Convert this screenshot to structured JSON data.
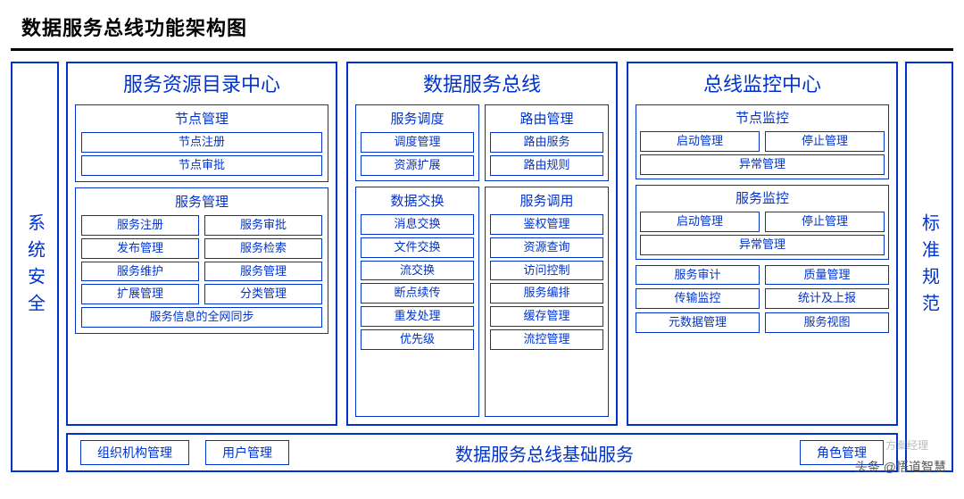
{
  "title": "数据服务总线功能架构图",
  "colors": {
    "border": "#0033cc",
    "text": "#0033cc",
    "title": "#000000",
    "bg": "#ffffff"
  },
  "left_panel": "系统安全",
  "right_panel": "标准规范",
  "columns": [
    {
      "title": "服务资源目录中心",
      "groups": [
        {
          "title": "节点管理",
          "layout": "full",
          "items": [
            "节点注册",
            "节点审批"
          ]
        },
        {
          "title": "服务管理",
          "layout": "pairs-wide",
          "rows": [
            [
              "服务注册",
              "服务审批"
            ],
            [
              "发布管理",
              "服务检索"
            ],
            [
              "服务维护",
              "服务管理"
            ],
            [
              "扩展管理",
              "分类管理"
            ]
          ],
          "tail_full": "服务信息的全网同步"
        }
      ]
    },
    {
      "title": "数据服务总线",
      "pairs": [
        {
          "left": {
            "title": "服务调度",
            "items": [
              "调度管理",
              "资源扩展"
            ]
          },
          "right": {
            "title": "路由管理",
            "items": [
              "路由服务",
              "路由规则"
            ]
          }
        },
        {
          "left": {
            "title": "数据交换",
            "items": [
              "消息交换",
              "文件交换",
              "流交换",
              "断点续传",
              "重发处理",
              "优先级"
            ]
          },
          "right": {
            "title": "服务调用",
            "items": [
              "鉴权管理",
              "资源查询",
              "访问控制",
              "服务编排",
              "缓存管理",
              "流控管理"
            ]
          }
        }
      ]
    },
    {
      "title": "总线监控中心",
      "groups": [
        {
          "title": "节点监控",
          "layout": "mixed",
          "rows": [
            [
              "启动管理",
              "停止管理"
            ]
          ],
          "tail_full": "异常管理"
        },
        {
          "title": "服务监控",
          "layout": "mixed",
          "rows": [
            [
              "启动管理",
              "停止管理"
            ]
          ],
          "tail_full": "异常管理"
        }
      ],
      "naked_rows": [
        [
          "服务审计",
          "质量管理"
        ],
        [
          "传输监控",
          "统计及上报"
        ],
        [
          "元数据管理",
          "服务视图"
        ]
      ]
    }
  ],
  "bottom": {
    "title": "数据服务总线基础服务",
    "left_items": [
      "组织机构管理",
      "用户管理"
    ],
    "right_items": [
      "角色管理"
    ]
  },
  "watermark": "头条 @悟道智慧",
  "wx_badge": "方案经理"
}
